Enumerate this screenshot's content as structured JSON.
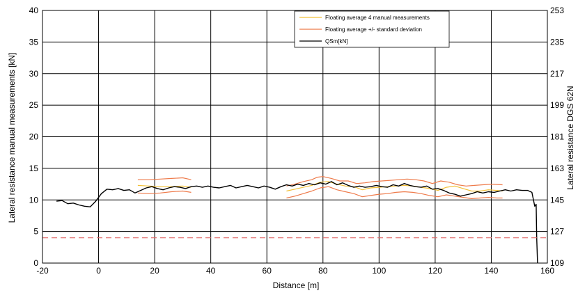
{
  "chart_data": {
    "type": "line",
    "xlabel": "Distance [m]",
    "ylabel": "Lateral resistance manual measurements [kN]",
    "ylabel_right": "Lateral resistance DGS 62N",
    "xlim": [
      -20,
      160
    ],
    "ylim": [
      0,
      40
    ],
    "ylim_right": [
      109,
      253
    ],
    "x_ticks": [
      -20,
      0,
      20,
      40,
      60,
      80,
      100,
      120,
      140,
      160
    ],
    "y_ticks": [
      0,
      5,
      10,
      15,
      20,
      25,
      30,
      35,
      40
    ],
    "y_ticks_right": [
      109,
      127,
      145,
      163,
      181,
      199,
      217,
      235,
      253
    ],
    "grid": true,
    "legend_position": "top-right",
    "colors": {
      "avg": "#f2c037",
      "std": "#ee7a4a",
      "qsm": "#000000",
      "threshold": "#e06666"
    },
    "series": [
      {
        "name": "Floating average 4 manual measurements",
        "color_key": "avg",
        "segments": [
          {
            "x": [
              14,
              18,
              22,
              26,
              30,
              33
            ],
            "y": [
              12.3,
              12.2,
              12.1,
              12.1,
              12.2,
              12.0
            ]
          },
          {
            "x": [
              67,
              70,
              73,
              76,
              79,
              82,
              85,
              88,
              91,
              94,
              97,
              100,
              103,
              106,
              109,
              112,
              115,
              118,
              121,
              124,
              127,
              130,
              133,
              136,
              139,
              142,
              144
            ],
            "y": [
              11.4,
              11.7,
              12.0,
              12.3,
              12.8,
              12.9,
              12.5,
              12.2,
              12.1,
              11.6,
              11.9,
              12.0,
              12.1,
              12.2,
              12.3,
              12.2,
              12.0,
              11.8,
              11.5,
              12.0,
              12.2,
              11.8,
              11.4,
              11.4,
              11.6,
              11.5,
              11.4
            ]
          }
        ]
      },
      {
        "name": "Floating average +/- standard deviation",
        "color_key": "std",
        "segments": [
          {
            "x": [
              14,
              18,
              22,
              26,
              30,
              33
            ],
            "y": [
              13.2,
              13.2,
              13.3,
              13.4,
              13.5,
              13.2
            ]
          },
          {
            "x": [
              14,
              18,
              22,
              26,
              30,
              33
            ],
            "y": [
              11.1,
              11.0,
              11.1,
              11.3,
              11.4,
              11.2
            ]
          },
          {
            "x": [
              67,
              70,
              73,
              76,
              78,
              80,
              83,
              86,
              89,
              92,
              95,
              98,
              101,
              104,
              107,
              110,
              113,
              116,
              119,
              122,
              125,
              128,
              131,
              134,
              137,
              140,
              144
            ],
            "y": [
              12.2,
              12.5,
              12.9,
              13.2,
              13.6,
              13.7,
              13.4,
              13.0,
              13.0,
              12.6,
              12.7,
              12.9,
              13.0,
              13.1,
              13.2,
              13.3,
              13.2,
              13.0,
              12.6,
              13.0,
              12.8,
              12.4,
              12.2,
              12.3,
              12.4,
              12.5,
              12.4
            ]
          },
          {
            "x": [
              67,
              70,
              73,
              76,
              79,
              82,
              85,
              88,
              91,
              94,
              97,
              100,
              103,
              106,
              109,
              112,
              115,
              118,
              121,
              124,
              127,
              130,
              133,
              136,
              139,
              142,
              144
            ],
            "y": [
              10.3,
              10.6,
              11.0,
              11.4,
              11.9,
              12.1,
              11.6,
              11.3,
              11.0,
              10.5,
              10.7,
              10.9,
              11.0,
              11.2,
              11.3,
              11.2,
              11.0,
              10.7,
              10.5,
              10.8,
              10.6,
              10.4,
              10.2,
              10.3,
              10.4,
              10.3,
              10.3
            ]
          }
        ]
      },
      {
        "name": "QSm[kN]",
        "color_key": "qsm",
        "segments": [
          {
            "x": [
              -15,
              -13,
              -11,
              -9,
              -7,
              -5,
              -3,
              -1,
              1,
              3,
              5,
              7,
              9,
              11,
              13,
              15,
              17,
              19,
              21,
              23,
              25,
              27,
              29,
              31,
              33,
              35,
              37,
              39,
              41,
              43,
              45,
              47,
              49,
              51,
              53,
              55,
              57,
              59,
              61,
              63,
              65,
              67,
              69,
              71,
              73,
              75,
              77,
              79,
              81,
              83,
              85,
              87,
              89,
              91,
              93,
              95,
              97,
              99,
              101,
              103,
              105,
              107,
              109,
              111,
              113,
              115,
              117,
              119,
              121,
              123,
              125,
              127,
              129,
              131,
              133,
              135,
              137,
              139,
              141,
              143,
              145,
              147,
              149,
              151,
              153,
              154.5,
              155.5,
              156,
              156.2,
              156.5
            ],
            "y": [
              9.8,
              9.9,
              9.4,
              9.5,
              9.2,
              9.0,
              8.9,
              9.8,
              11.0,
              11.7,
              11.6,
              11.8,
              11.5,
              11.6,
              11.1,
              11.5,
              11.9,
              12.1,
              11.8,
              11.6,
              11.9,
              12.1,
              12.0,
              11.8,
              12.1,
              12.2,
              12.0,
              12.2,
              12.0,
              11.9,
              12.1,
              12.3,
              11.9,
              12.1,
              12.3,
              12.1,
              11.9,
              12.2,
              12.0,
              11.7,
              12.1,
              12.4,
              12.2,
              12.5,
              12.3,
              12.6,
              12.4,
              12.7,
              12.5,
              12.9,
              12.4,
              12.7,
              12.3,
              12.0,
              12.2,
              12.0,
              12.1,
              12.3,
              12.1,
              12.0,
              12.4,
              12.2,
              12.6,
              12.3,
              12.1,
              12.0,
              12.2,
              11.7,
              11.8,
              11.5,
              11.1,
              10.9,
              10.6,
              10.8,
              11.0,
              11.3,
              11.1,
              11.3,
              11.2,
              11.4,
              11.6,
              11.4,
              11.6,
              11.5,
              11.5,
              11.2,
              9.0,
              9.3,
              4.0,
              0.0
            ]
          }
        ]
      },
      {
        "color_key": "threshold",
        "dashed": true,
        "segments": [
          {
            "x": [
              -20,
              160
            ],
            "y": [
              4,
              4
            ]
          }
        ]
      }
    ]
  }
}
